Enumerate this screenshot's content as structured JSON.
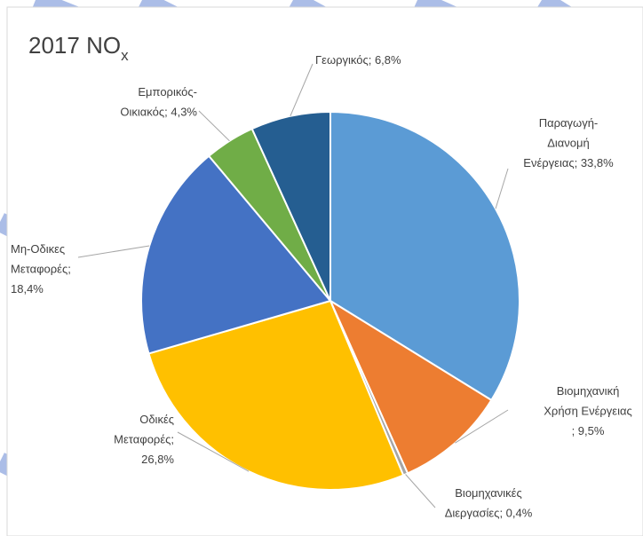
{
  "chart_data": {
    "type": "pie",
    "title": {
      "text": "2017 NO",
      "subscript": "x"
    },
    "values": [
      33.8,
      9.5,
      0.4,
      26.8,
      18.4,
      4.3,
      6.8
    ],
    "value_labels": [
      [
        "Παραγωγή-",
        "Διανομή",
        "Ενέργειας; 33,8%"
      ],
      [
        "Βιομηχανική",
        "Χρήση Ενέργειας",
        "; 9,5%"
      ],
      [
        "Βιομηχανικές",
        "Διεργασίες; 0,4%"
      ],
      [
        "Οδικές",
        "Μεταφορές;",
        "26,8%"
      ],
      [
        "Μη-Οδικες",
        "Μεταφορές;",
        "18,4%"
      ],
      [
        "Εμπορικός-",
        "Οικιακός; 4,3%"
      ],
      [
        "Γεωργικός; 6,8%"
      ]
    ],
    "colors": [
      "#5b9bd5",
      "#ed7d31",
      "#a5a5a5",
      "#ffc000",
      "#4472c4",
      "#70ad47",
      "#255e91"
    ]
  }
}
